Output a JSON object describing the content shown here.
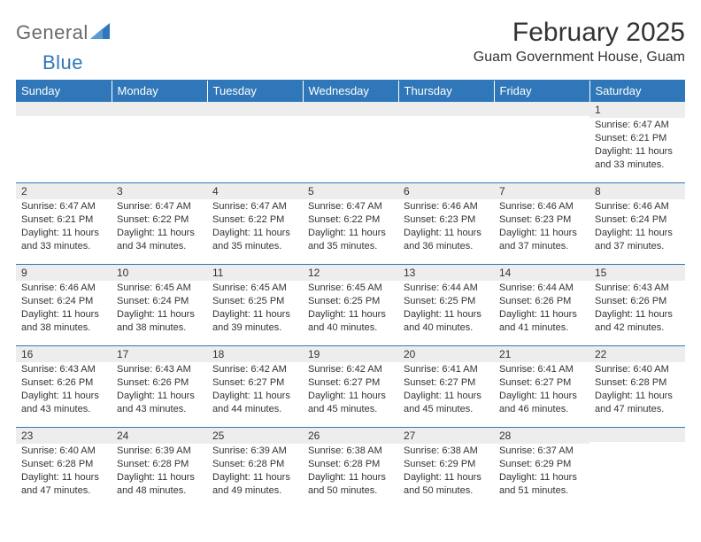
{
  "brand": {
    "text1": "General",
    "text2": "Blue",
    "icon_color": "#2f77b8"
  },
  "title": "February 2025",
  "location": "Guam Government House, Guam",
  "header_bg": "#2f77b8",
  "header_fg": "#ffffff",
  "divider_color": "#2f77b8",
  "daynum_bg": "#ededed",
  "text_color": "#333333",
  "font_size_title": 30,
  "font_size_location": 16,
  "font_size_header": 13,
  "font_size_daynum": 12,
  "font_size_body": 11,
  "weekdays": [
    "Sunday",
    "Monday",
    "Tuesday",
    "Wednesday",
    "Thursday",
    "Friday",
    "Saturday"
  ],
  "weeks": [
    [
      {
        "n": "",
        "lines": []
      },
      {
        "n": "",
        "lines": []
      },
      {
        "n": "",
        "lines": []
      },
      {
        "n": "",
        "lines": []
      },
      {
        "n": "",
        "lines": []
      },
      {
        "n": "",
        "lines": []
      },
      {
        "n": "1",
        "lines": [
          "Sunrise: 6:47 AM",
          "Sunset: 6:21 PM",
          "Daylight: 11 hours and 33 minutes."
        ]
      }
    ],
    [
      {
        "n": "2",
        "lines": [
          "Sunrise: 6:47 AM",
          "Sunset: 6:21 PM",
          "Daylight: 11 hours and 33 minutes."
        ]
      },
      {
        "n": "3",
        "lines": [
          "Sunrise: 6:47 AM",
          "Sunset: 6:22 PM",
          "Daylight: 11 hours and 34 minutes."
        ]
      },
      {
        "n": "4",
        "lines": [
          "Sunrise: 6:47 AM",
          "Sunset: 6:22 PM",
          "Daylight: 11 hours and 35 minutes."
        ]
      },
      {
        "n": "5",
        "lines": [
          "Sunrise: 6:47 AM",
          "Sunset: 6:22 PM",
          "Daylight: 11 hours and 35 minutes."
        ]
      },
      {
        "n": "6",
        "lines": [
          "Sunrise: 6:46 AM",
          "Sunset: 6:23 PM",
          "Daylight: 11 hours and 36 minutes."
        ]
      },
      {
        "n": "7",
        "lines": [
          "Sunrise: 6:46 AM",
          "Sunset: 6:23 PM",
          "Daylight: 11 hours and 37 minutes."
        ]
      },
      {
        "n": "8",
        "lines": [
          "Sunrise: 6:46 AM",
          "Sunset: 6:24 PM",
          "Daylight: 11 hours and 37 minutes."
        ]
      }
    ],
    [
      {
        "n": "9",
        "lines": [
          "Sunrise: 6:46 AM",
          "Sunset: 6:24 PM",
          "Daylight: 11 hours and 38 minutes."
        ]
      },
      {
        "n": "10",
        "lines": [
          "Sunrise: 6:45 AM",
          "Sunset: 6:24 PM",
          "Daylight: 11 hours and 38 minutes."
        ]
      },
      {
        "n": "11",
        "lines": [
          "Sunrise: 6:45 AM",
          "Sunset: 6:25 PM",
          "Daylight: 11 hours and 39 minutes."
        ]
      },
      {
        "n": "12",
        "lines": [
          "Sunrise: 6:45 AM",
          "Sunset: 6:25 PM",
          "Daylight: 11 hours and 40 minutes."
        ]
      },
      {
        "n": "13",
        "lines": [
          "Sunrise: 6:44 AM",
          "Sunset: 6:25 PM",
          "Daylight: 11 hours and 40 minutes."
        ]
      },
      {
        "n": "14",
        "lines": [
          "Sunrise: 6:44 AM",
          "Sunset: 6:26 PM",
          "Daylight: 11 hours and 41 minutes."
        ]
      },
      {
        "n": "15",
        "lines": [
          "Sunrise: 6:43 AM",
          "Sunset: 6:26 PM",
          "Daylight: 11 hours and 42 minutes."
        ]
      }
    ],
    [
      {
        "n": "16",
        "lines": [
          "Sunrise: 6:43 AM",
          "Sunset: 6:26 PM",
          "Daylight: 11 hours and 43 minutes."
        ]
      },
      {
        "n": "17",
        "lines": [
          "Sunrise: 6:43 AM",
          "Sunset: 6:26 PM",
          "Daylight: 11 hours and 43 minutes."
        ]
      },
      {
        "n": "18",
        "lines": [
          "Sunrise: 6:42 AM",
          "Sunset: 6:27 PM",
          "Daylight: 11 hours and 44 minutes."
        ]
      },
      {
        "n": "19",
        "lines": [
          "Sunrise: 6:42 AM",
          "Sunset: 6:27 PM",
          "Daylight: 11 hours and 45 minutes."
        ]
      },
      {
        "n": "20",
        "lines": [
          "Sunrise: 6:41 AM",
          "Sunset: 6:27 PM",
          "Daylight: 11 hours and 45 minutes."
        ]
      },
      {
        "n": "21",
        "lines": [
          "Sunrise: 6:41 AM",
          "Sunset: 6:27 PM",
          "Daylight: 11 hours and 46 minutes."
        ]
      },
      {
        "n": "22",
        "lines": [
          "Sunrise: 6:40 AM",
          "Sunset: 6:28 PM",
          "Daylight: 11 hours and 47 minutes."
        ]
      }
    ],
    [
      {
        "n": "23",
        "lines": [
          "Sunrise: 6:40 AM",
          "Sunset: 6:28 PM",
          "Daylight: 11 hours and 47 minutes."
        ]
      },
      {
        "n": "24",
        "lines": [
          "Sunrise: 6:39 AM",
          "Sunset: 6:28 PM",
          "Daylight: 11 hours and 48 minutes."
        ]
      },
      {
        "n": "25",
        "lines": [
          "Sunrise: 6:39 AM",
          "Sunset: 6:28 PM",
          "Daylight: 11 hours and 49 minutes."
        ]
      },
      {
        "n": "26",
        "lines": [
          "Sunrise: 6:38 AM",
          "Sunset: 6:28 PM",
          "Daylight: 11 hours and 50 minutes."
        ]
      },
      {
        "n": "27",
        "lines": [
          "Sunrise: 6:38 AM",
          "Sunset: 6:29 PM",
          "Daylight: 11 hours and 50 minutes."
        ]
      },
      {
        "n": "28",
        "lines": [
          "Sunrise: 6:37 AM",
          "Sunset: 6:29 PM",
          "Daylight: 11 hours and 51 minutes."
        ]
      },
      {
        "n": "",
        "lines": []
      }
    ]
  ]
}
